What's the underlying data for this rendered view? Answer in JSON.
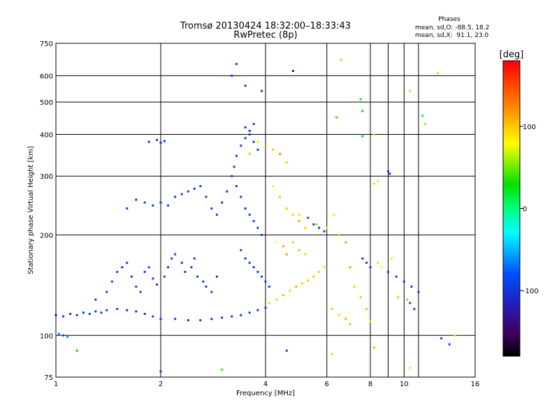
{
  "chart_data": {
    "type": "scatter",
    "title": "Tromsø 20130424 18:32:00–18:33:43",
    "subtitle": "RwPretec (8p)",
    "xlabel": "Frequency [MHz]",
    "ylabel": "Stationary phase Virtual Height [km]",
    "x_scale": "log",
    "y_scale": "log",
    "xlim": [
      1,
      16
    ],
    "ylim": [
      75,
      750
    ],
    "x_ticks": [
      1,
      2,
      4,
      6,
      8,
      10,
      16
    ],
    "x_tick_labels": [
      "1",
      "2",
      "4",
      "6",
      "8",
      "10",
      "16"
    ],
    "x_minor_gridlines": [
      9,
      11
    ],
    "y_ticks": [
      75,
      100,
      200,
      300,
      400,
      500,
      600,
      750
    ],
    "y_tick_labels": [
      "75",
      "100",
      "200",
      "300",
      "400",
      "500",
      "600",
      "750"
    ],
    "grid": true,
    "stats": {
      "heading": "Phases",
      "line1": "mean, sd,O: -88.5, 18.2",
      "line2": "mean, sd,X:  91.1, 23.0"
    },
    "colorbar": {
      "label": "[deg]",
      "range": [
        -180,
        180
      ],
      "ticks": [
        100,
        0,
        -100
      ],
      "tick_labels": [
        "100",
        "0",
        "-100"
      ]
    },
    "series": [
      {
        "points": [
          [
            1.0,
            115,
            -95
          ],
          [
            1.05,
            114,
            -92
          ],
          [
            1.1,
            116,
            -98
          ],
          [
            1.15,
            115,
            -90
          ],
          [
            1.2,
            117,
            -94
          ],
          [
            1.25,
            116,
            -88
          ],
          [
            1.3,
            118,
            -96
          ],
          [
            1.35,
            117,
            -91
          ],
          [
            1.4,
            119,
            -93
          ],
          [
            1.5,
            120,
            -89
          ],
          [
            1.6,
            119,
            -95
          ],
          [
            1.7,
            118,
            -92
          ],
          [
            1.8,
            116,
            -97
          ],
          [
            1.9,
            114,
            -90
          ],
          [
            2.0,
            112,
            -94
          ],
          [
            2.2,
            112,
            -92
          ],
          [
            2.4,
            111,
            -96
          ],
          [
            2.6,
            111,
            -93
          ],
          [
            2.8,
            112,
            -91
          ],
          [
            3.0,
            113,
            -95
          ],
          [
            3.2,
            114,
            -90
          ],
          [
            3.4,
            115,
            -93
          ],
          [
            3.6,
            117,
            -88
          ],
          [
            3.8,
            119,
            -92
          ],
          [
            4.0,
            121,
            -90
          ],
          [
            1.02,
            101,
            -70
          ],
          [
            1.05,
            100,
            -85
          ],
          [
            1.08,
            99,
            -60
          ],
          [
            1.3,
            128,
            -88
          ],
          [
            1.4,
            135,
            -92
          ],
          [
            1.45,
            145,
            -85
          ],
          [
            1.5,
            155,
            -90
          ],
          [
            1.55,
            160,
            -93
          ],
          [
            1.6,
            165,
            -87
          ],
          [
            1.65,
            150,
            -95
          ],
          [
            1.7,
            140,
            -90
          ],
          [
            1.75,
            135,
            -84
          ],
          [
            1.8,
            155,
            -92
          ],
          [
            1.85,
            160,
            -88
          ],
          [
            1.9,
            148,
            -95
          ],
          [
            1.95,
            142,
            -91
          ],
          [
            2.05,
            150,
            -89
          ],
          [
            2.1,
            160,
            -94
          ],
          [
            2.15,
            170,
            -90
          ],
          [
            2.2,
            175,
            -85
          ],
          [
            2.3,
            165,
            -92
          ],
          [
            2.35,
            155,
            -96
          ],
          [
            2.45,
            160,
            -90
          ],
          [
            2.5,
            170,
            -88
          ],
          [
            2.55,
            150,
            -93
          ],
          [
            2.65,
            145,
            -97
          ],
          [
            2.7,
            140,
            -90
          ],
          [
            2.8,
            135,
            -92
          ],
          [
            2.9,
            150,
            -94
          ],
          [
            1.6,
            240,
            -90
          ],
          [
            1.7,
            255,
            -93
          ],
          [
            1.8,
            250,
            -88
          ],
          [
            1.9,
            245,
            -95
          ],
          [
            2.0,
            250,
            -92
          ],
          [
            2.1,
            245,
            -89
          ],
          [
            2.2,
            260,
            -94
          ],
          [
            2.3,
            265,
            -91
          ],
          [
            2.4,
            270,
            -87
          ],
          [
            2.5,
            275,
            -93
          ],
          [
            2.6,
            280,
            -90
          ],
          [
            2.7,
            260,
            -96
          ],
          [
            2.8,
            240,
            -92
          ],
          [
            2.9,
            230,
            -89
          ],
          [
            3.0,
            250,
            -94
          ],
          [
            3.1,
            270,
            -91
          ],
          [
            3.2,
            300,
            -93
          ],
          [
            3.25,
            320,
            -88
          ],
          [
            3.3,
            345,
            -95
          ],
          [
            3.4,
            370,
            -92
          ],
          [
            3.5,
            390,
            -90
          ],
          [
            3.6,
            410,
            -94
          ],
          [
            3.7,
            430,
            -87
          ],
          [
            3.3,
            280,
            -93
          ],
          [
            3.4,
            260,
            -89
          ],
          [
            3.5,
            240,
            -91
          ],
          [
            3.6,
            230,
            -95
          ],
          [
            3.7,
            220,
            -92
          ],
          [
            3.8,
            210,
            -88
          ],
          [
            3.9,
            200,
            -94
          ],
          [
            3.4,
            180,
            -90
          ],
          [
            3.5,
            170,
            -93
          ],
          [
            3.6,
            165,
            -87
          ],
          [
            3.7,
            160,
            -95
          ],
          [
            3.8,
            155,
            -92
          ],
          [
            3.9,
            150,
            -89
          ],
          [
            4.0,
            145,
            -94
          ],
          [
            4.1,
            140,
            -90
          ],
          [
            1.85,
            380,
            -95
          ],
          [
            1.95,
            385,
            -92
          ],
          [
            2.0,
            378,
            -98
          ],
          [
            2.05,
            382,
            -90
          ],
          [
            3.3,
            650,
            -92
          ],
          [
            3.2,
            600,
            -88
          ],
          [
            3.5,
            560,
            -95
          ],
          [
            3.9,
            540,
            -90
          ],
          [
            3.5,
            420,
            -92
          ],
          [
            3.6,
            400,
            -88
          ],
          [
            3.7,
            380,
            -95
          ],
          [
            3.8,
            360,
            -91
          ],
          [
            3.6,
            350,
            60
          ],
          [
            3.8,
            380,
            90
          ],
          [
            4.0,
            370,
            110
          ],
          [
            4.2,
            360,
            100
          ],
          [
            4.4,
            350,
            120
          ],
          [
            4.6,
            330,
            95
          ],
          [
            4.2,
            280,
            85
          ],
          [
            4.4,
            260,
            105
          ],
          [
            4.6,
            240,
            100
          ],
          [
            4.8,
            230,
            95
          ],
          [
            5.0,
            220,
            110
          ],
          [
            5.2,
            210,
            100
          ],
          [
            4.1,
            125,
            95
          ],
          [
            4.3,
            128,
            100
          ],
          [
            4.5,
            132,
            105
          ],
          [
            4.7,
            136,
            98
          ],
          [
            4.9,
            140,
            110
          ],
          [
            5.1,
            143,
            95
          ],
          [
            5.3,
            146,
            100
          ],
          [
            5.5,
            150,
            105
          ],
          [
            5.7,
            155,
            98
          ],
          [
            5.9,
            160,
            92
          ],
          [
            4.5,
            185,
            110
          ],
          [
            4.8,
            190,
            100
          ],
          [
            5.0,
            180,
            105
          ],
          [
            5.2,
            175,
            95
          ],
          [
            4.3,
            190,
            80
          ],
          [
            4.6,
            175,
            115
          ],
          [
            5.0,
            230,
            70
          ],
          [
            5.3,
            225,
            -90
          ],
          [
            5.5,
            215,
            -92
          ],
          [
            5.7,
            210,
            -88
          ],
          [
            5.9,
            205,
            -95
          ],
          [
            5.6,
            215,
            60
          ],
          [
            6.0,
            210,
            90
          ],
          [
            6.3,
            230,
            85
          ],
          [
            6.5,
            200,
            100
          ],
          [
            6.8,
            190,
            120
          ],
          [
            7.0,
            160,
            110
          ],
          [
            7.2,
            140,
            95
          ],
          [
            7.5,
            130,
            100
          ],
          [
            7.8,
            120,
            105
          ],
          [
            8.0,
            110,
            90
          ],
          [
            6.2,
            120,
            100
          ],
          [
            6.5,
            115,
            95
          ],
          [
            6.8,
            112,
            110
          ],
          [
            7.0,
            108,
            105
          ],
          [
            7.6,
            170,
            -92
          ],
          [
            7.8,
            165,
            -88
          ],
          [
            8.0,
            160,
            -95
          ],
          [
            8.4,
            165,
            70
          ],
          [
            8.6,
            160,
            80
          ],
          [
            9.0,
            155,
            -90
          ],
          [
            9.5,
            150,
            -93
          ],
          [
            10.0,
            145,
            -88
          ],
          [
            10.5,
            140,
            -95
          ],
          [
            11.0,
            135,
            -92
          ],
          [
            9.2,
            170,
            90
          ],
          [
            9.6,
            130,
            100
          ],
          [
            10.2,
            128,
            110
          ],
          [
            10.4,
            125,
            -85
          ],
          [
            10.7,
            120,
            -90
          ],
          [
            9.0,
            310,
            -92
          ],
          [
            9.1,
            305,
            -95
          ],
          [
            8.4,
            290,
            90
          ],
          [
            8.2,
            285,
            100
          ],
          [
            7.5,
            510,
            20
          ],
          [
            7.6,
            470,
            30
          ],
          [
            8.2,
            400,
            100
          ],
          [
            10.4,
            540,
            100
          ],
          [
            11.3,
            455,
            10
          ],
          [
            11.5,
            430,
            60
          ],
          [
            12.5,
            610,
            100
          ],
          [
            7.6,
            395,
            20
          ],
          [
            4.8,
            620,
            -110
          ],
          [
            6.4,
            450,
            40
          ],
          [
            6.6,
            670,
            60
          ],
          [
            4.6,
            90,
            -88
          ],
          [
            6.2,
            88,
            100
          ],
          [
            8.2,
            92,
            110
          ],
          [
            10.4,
            80,
            90
          ],
          [
            1.15,
            90,
            30
          ],
          [
            3.0,
            79,
            40
          ],
          [
            2.0,
            78,
            -95
          ],
          [
            12.8,
            98,
            -88
          ],
          [
            13.5,
            94,
            -90
          ],
          [
            14.0,
            100,
            95
          ]
        ]
      }
    ]
  }
}
